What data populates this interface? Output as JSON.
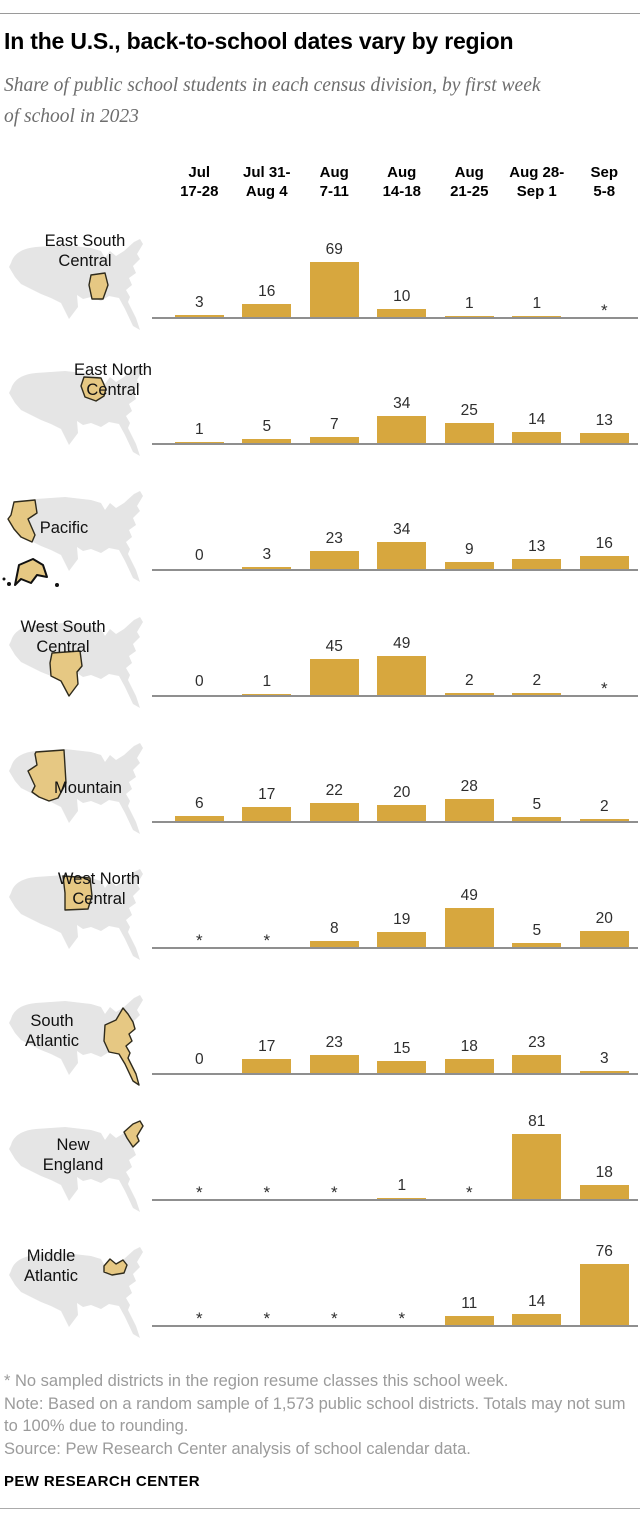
{
  "header": {
    "title": "In the U.S., back-to-school dates vary by region",
    "subtitle": "Share of public school students in each census division, by first week of school in 2023"
  },
  "chart_data": {
    "type": "bar",
    "unit": "% of public school students",
    "value_range": [
      0,
      100
    ],
    "asterisk_meaning": "No sampled districts in the region resume classes this school week",
    "categories": [
      "Jul 17-28",
      "Jul 31-Aug 4",
      "Aug 7-11",
      "Aug 14-18",
      "Aug 21-25",
      "Aug 28-Sep 1",
      "Sep 5-8"
    ],
    "category_lines": [
      [
        "Jul",
        "17-28"
      ],
      [
        "Jul 31-",
        "Aug 4"
      ],
      [
        "Aug",
        "7-11"
      ],
      [
        "Aug",
        "14-18"
      ],
      [
        "Aug",
        "21-25"
      ],
      [
        "Aug 28-",
        "Sep 1"
      ],
      [
        "Sep",
        "5-8"
      ]
    ],
    "series": [
      {
        "id": "east-south-central",
        "name": "East South Central",
        "label_lines": [
          "East South",
          "Central"
        ],
        "values": [
          3,
          16,
          69,
          10,
          1,
          1,
          "*"
        ]
      },
      {
        "id": "east-north-central",
        "name": "East North Central",
        "label_lines": [
          "East North",
          "Central"
        ],
        "values": [
          1,
          5,
          7,
          34,
          25,
          14,
          13
        ]
      },
      {
        "id": "pacific",
        "name": "Pacific",
        "label_lines": [
          "Pacific"
        ],
        "values": [
          0,
          3,
          23,
          34,
          9,
          13,
          16
        ]
      },
      {
        "id": "west-south-central",
        "name": "West South Central",
        "label_lines": [
          "West South",
          "Central"
        ],
        "values": [
          0,
          1,
          45,
          49,
          2,
          2,
          "*"
        ]
      },
      {
        "id": "mountain",
        "name": "Mountain",
        "label_lines": [
          "Mountain"
        ],
        "values": [
          6,
          17,
          22,
          20,
          28,
          5,
          2
        ]
      },
      {
        "id": "west-north-central",
        "name": "West North Central",
        "label_lines": [
          "West North",
          "Central"
        ],
        "values": [
          "*",
          "*",
          8,
          19,
          49,
          5,
          20
        ]
      },
      {
        "id": "south-atlantic",
        "name": "South Atlantic",
        "label_lines": [
          "South",
          "Atlantic"
        ],
        "values": [
          0,
          17,
          23,
          15,
          18,
          23,
          3
        ]
      },
      {
        "id": "new-england",
        "name": "New England",
        "label_lines": [
          "New",
          "England"
        ],
        "values": [
          "*",
          "*",
          "*",
          1,
          "*",
          81,
          18
        ]
      },
      {
        "id": "middle-atlantic",
        "name": "Middle Atlantic",
        "label_lines": [
          "Middle",
          "Atlantic"
        ],
        "values": [
          "*",
          "*",
          "*",
          "*",
          11,
          14,
          76
        ]
      }
    ],
    "colors": {
      "bar": "#D7A73E",
      "map_base": "#E5E5E5",
      "map_highlight": "#E6C883",
      "map_highlight_stroke": "#2f2b1c",
      "baseline": "#8f8f8f"
    }
  },
  "footer": {
    "asterisk_note": "* No sampled districts in the region resume classes this school week.",
    "note": "Note: Based on a random sample of 1,573 public school districts. Totals may not sum to 100% due to rounding.",
    "source": "Source: Pew Research Center analysis of school calendar data.",
    "brand": "PEW RESEARCH CENTER"
  }
}
